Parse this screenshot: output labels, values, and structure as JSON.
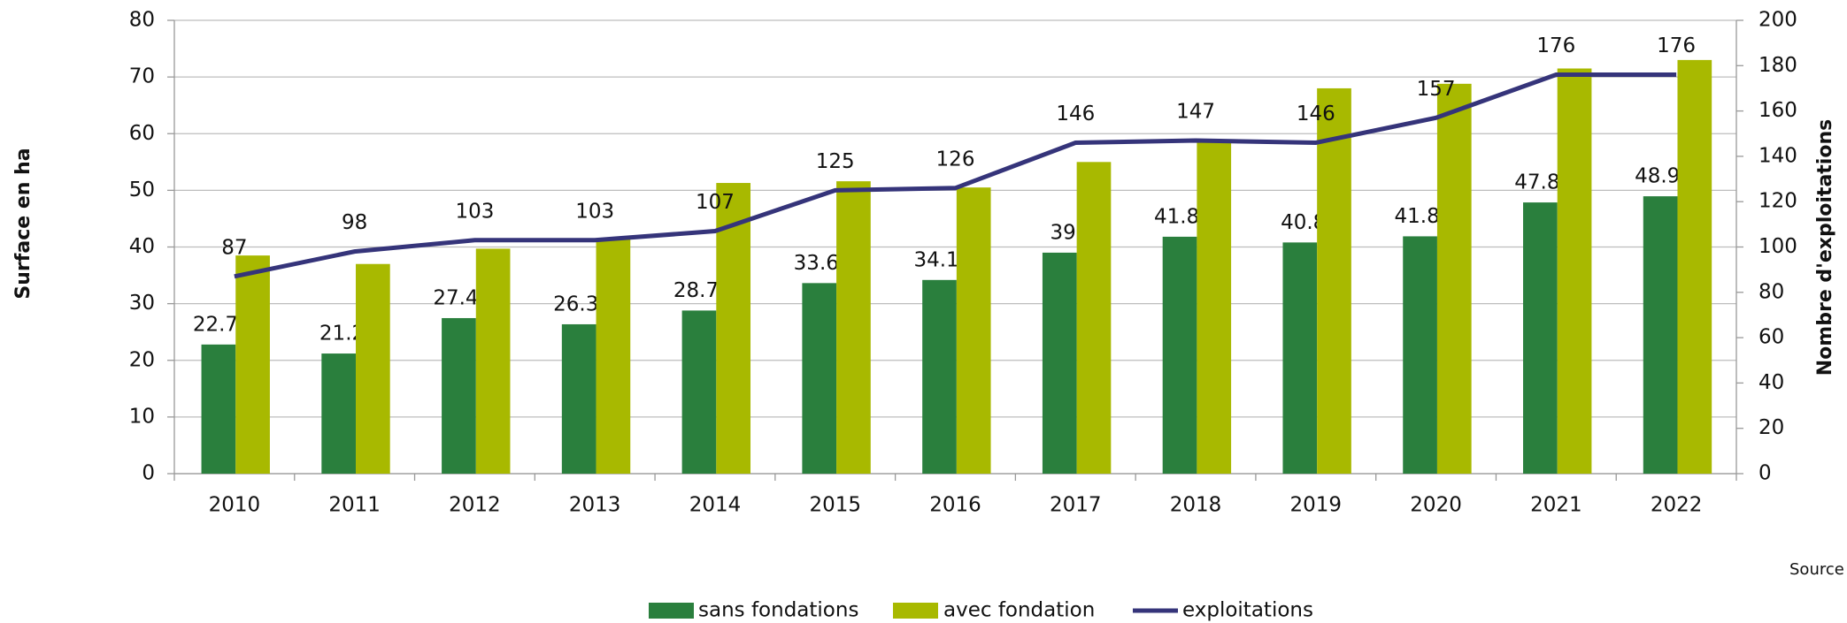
{
  "chart_data": {
    "type": "bar",
    "categories": [
      "2010",
      "2011",
      "2012",
      "2013",
      "2014",
      "2015",
      "2016",
      "2017",
      "2018",
      "2019",
      "2020",
      "2021",
      "2022"
    ],
    "series": [
      {
        "name": "sans fondations",
        "color": "#2a7f3d",
        "values": [
          22.79,
          21.2,
          27.45,
          26.36,
          28.79,
          33.63,
          34.18,
          39,
          41.81,
          40.8,
          41.88,
          47.86,
          48.95
        ]
      },
      {
        "name": "avec fondation",
        "color": "#a8b900",
        "values": [
          38.5,
          37,
          39.7,
          41.5,
          51.3,
          51.6,
          50.5,
          55,
          59,
          68,
          68.8,
          71.5,
          73
        ]
      },
      {
        "name": "exploitations",
        "color": "#35347a",
        "type": "line",
        "axis": "y2",
        "values": [
          87,
          98,
          103,
          103,
          107,
          125,
          126,
          146,
          147,
          146,
          157,
          176,
          176
        ]
      }
    ],
    "ylabel": "Surface en ha",
    "y2label": "Nombre d'exploitations",
    "ylim": [
      0,
      80
    ],
    "yticks": [
      0,
      10,
      20,
      30,
      40,
      50,
      60,
      70,
      80
    ],
    "y2lim": [
      0,
      200
    ],
    "y2ticks": [
      0,
      20,
      40,
      60,
      80,
      100,
      120,
      140,
      160,
      180,
      200
    ],
    "grid": true,
    "legend": "bottom",
    "source": "Source"
  }
}
